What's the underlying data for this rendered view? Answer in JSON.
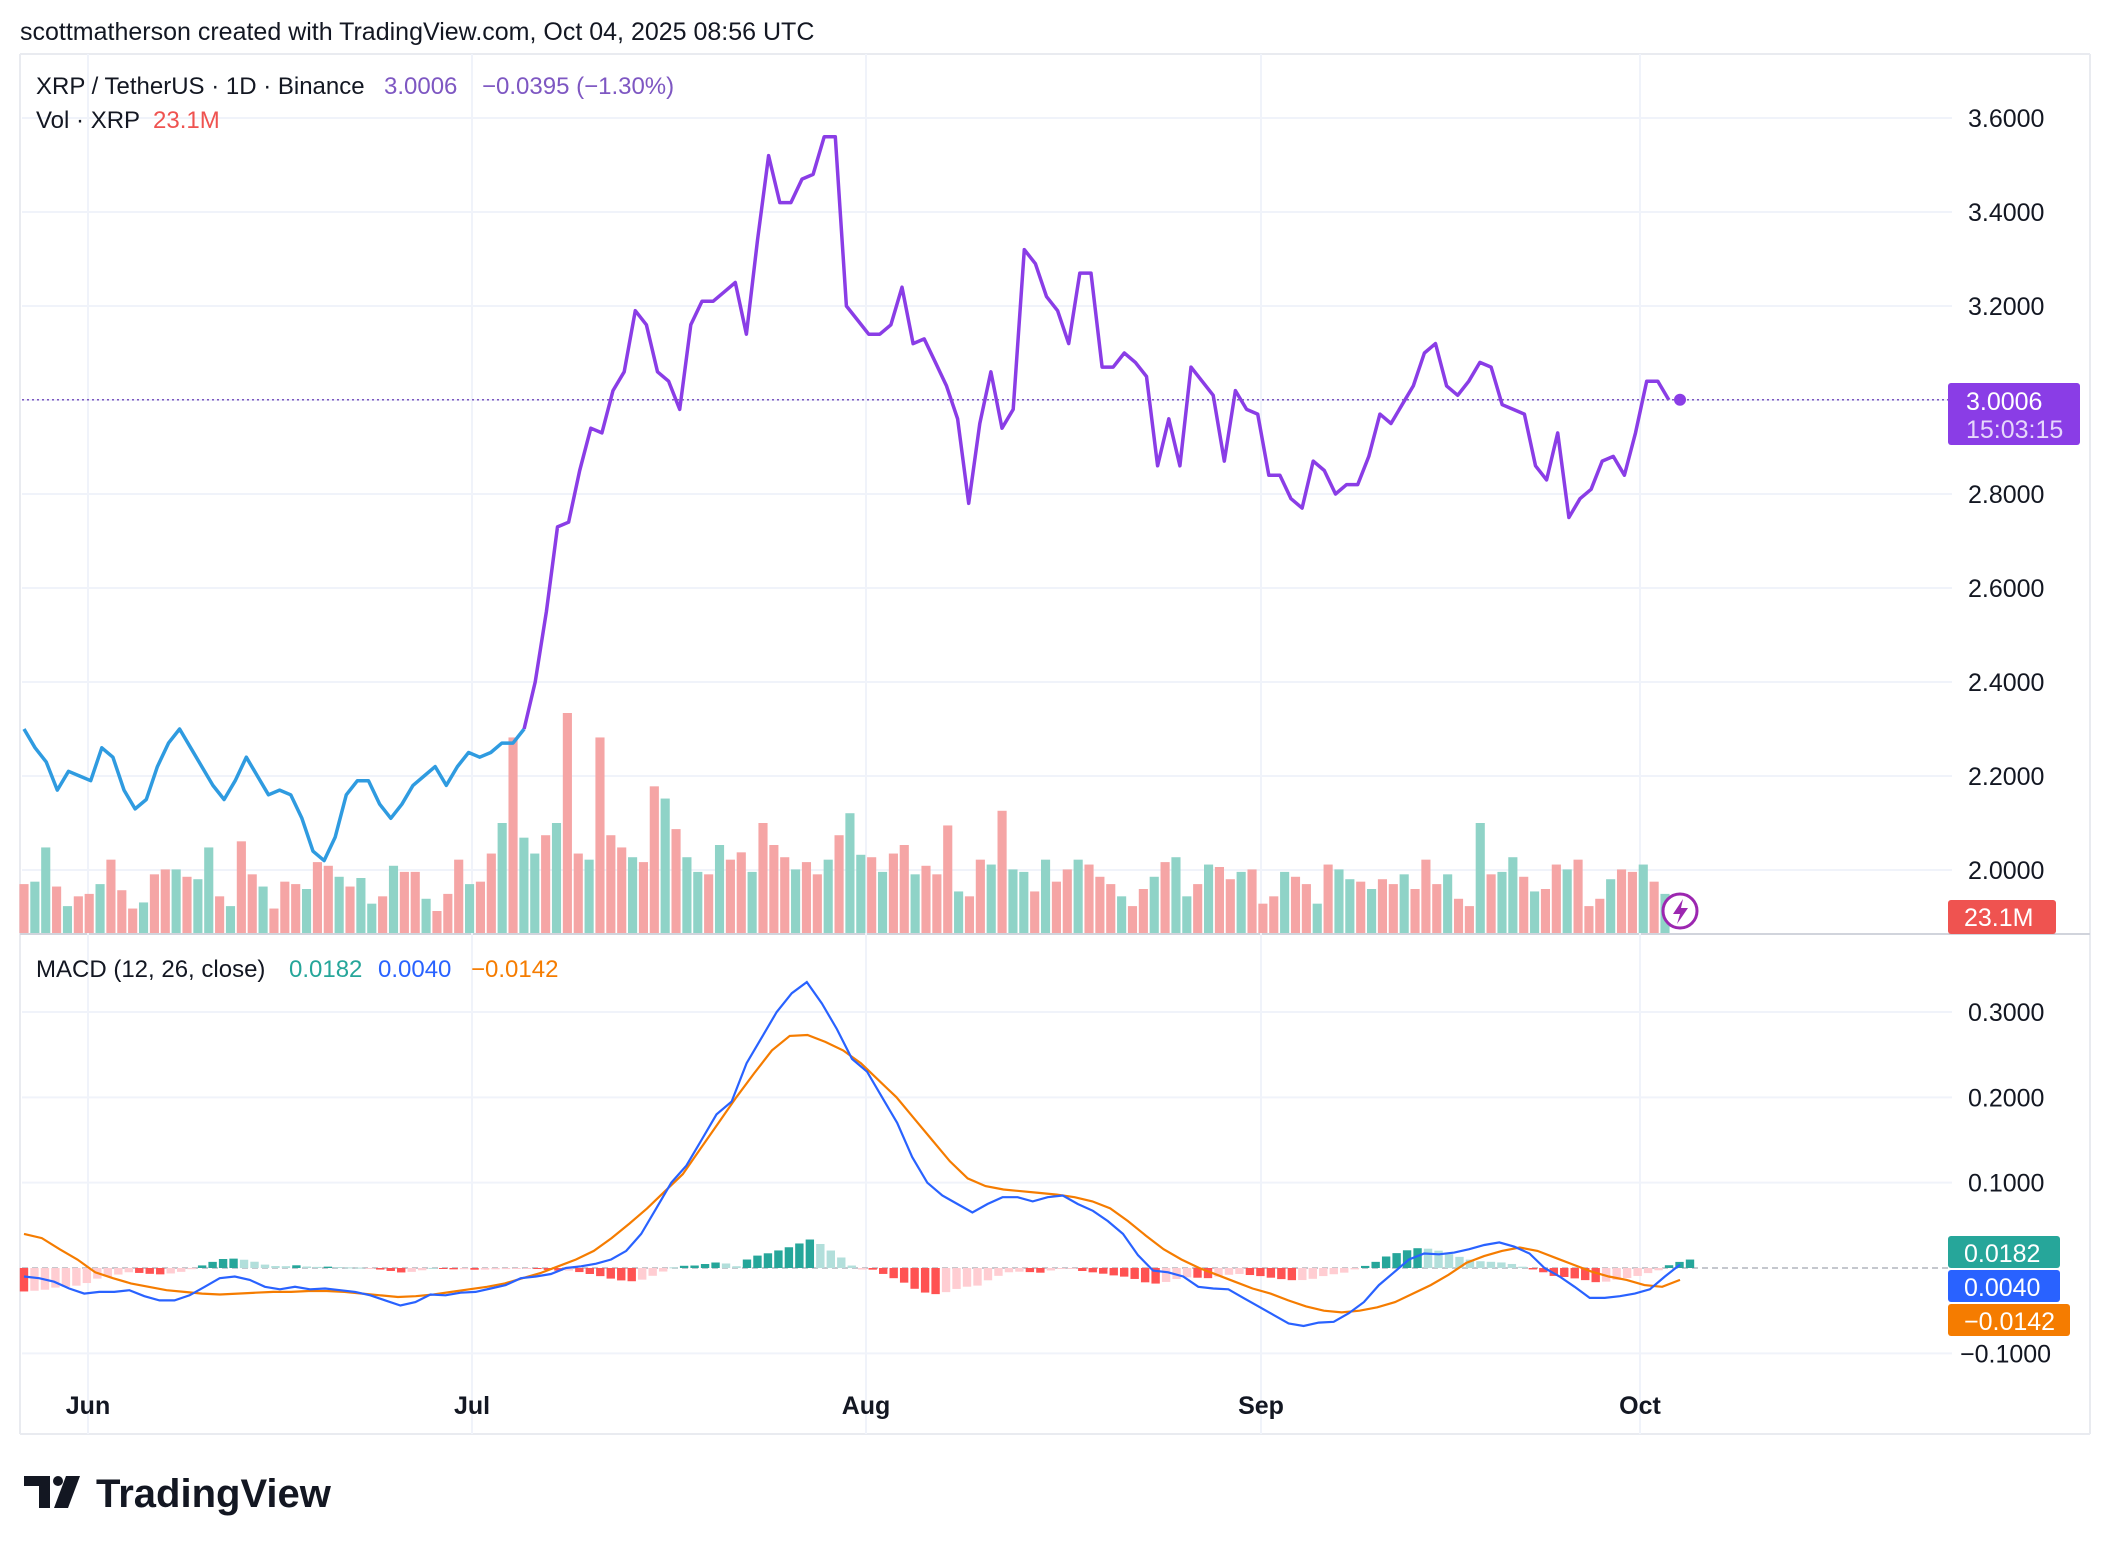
{
  "header": {
    "attribution": "scottmatherson created with TradingView.com, Oct 04, 2025 08:56 UTC"
  },
  "legend": {
    "symbol": "XRP / TetherUS · 1D · Binance",
    "last_price": "3.0006",
    "change": "−0.0395 (−1.30%)",
    "volume_label": "Vol · XRP",
    "volume_value": "23.1M",
    "macd_label": "MACD (12, 26, close)",
    "macd_hist": "0.0182",
    "macd_line": "0.0040",
    "macd_signal": "−0.0142"
  },
  "price_axis": {
    "ticks": [
      "3.6000",
      "3.4000",
      "3.2000",
      "3.0000",
      "2.8000",
      "2.6000",
      "2.4000",
      "2.2000",
      "2.0000"
    ],
    "last_price_badge": "3.0006",
    "countdown": "15:03:15",
    "volume_badge": "23.1M"
  },
  "macd_axis": {
    "ticks": [
      "0.3000",
      "0.2000",
      "0.1000",
      "−0.1000"
    ],
    "hist_badge": "0.0182",
    "macd_badge": "0.0040",
    "signal_badge": "−0.0142"
  },
  "time_axis": {
    "labels": [
      "Jun",
      "Jul",
      "Aug",
      "Sep",
      "Oct"
    ]
  },
  "branding": {
    "logo_text": "TradingView"
  },
  "colors": {
    "price_line_early": "#2f9be0",
    "price_line_late": "#8a3de6",
    "price_highlight": "#7e57c2",
    "down": "#ef5350",
    "up": "#26a69a",
    "macd_line": "#2962ff",
    "signal_line": "#f57c00",
    "hist_up_strong": "#26a69a",
    "hist_up_weak": "#b2dfdb",
    "hist_down_strong": "#ff5252",
    "hist_down_weak": "#ffcdd2",
    "vol_up": "#8fd3c7",
    "vol_down": "#f5a5a5"
  },
  "chart_data": {
    "type": "line",
    "symbol": "XRP / TetherUS",
    "interval": "1D",
    "exchange": "Binance",
    "price_ylim": [
      1.86,
      3.72
    ],
    "macd_ylim": [
      -0.12,
      0.36
    ],
    "grid": true,
    "price": [
      3.06,
      3.19,
      3.16,
      3.06,
      3.04,
      2.98,
      3.16,
      3.21,
      3.21,
      3.23,
      3.25,
      3.14,
      3.34,
      3.52,
      3.42,
      3.42,
      3.47,
      3.48,
      3.56,
      3.56,
      3.2,
      3.17,
      3.14,
      3.14,
      3.16,
      3.24,
      3.12,
      3.13,
      3.08,
      3.03,
      2.96,
      2.78,
      2.95,
      3.06,
      2.94,
      2.98,
      3.32,
      3.29,
      3.22,
      3.19,
      3.12,
      3.27,
      3.27,
      3.07,
      3.07,
      3.1,
      3.08,
      3.05,
      2.86,
      2.96,
      2.86,
      3.07,
      3.04,
      3.01,
      2.87,
      3.02,
      2.98,
      2.97,
      2.84,
      2.84,
      2.79,
      2.77,
      2.87,
      2.85,
      2.8,
      2.82,
      2.82,
      2.88,
      2.97,
      2.95,
      2.99,
      3.03,
      3.1,
      3.12,
      3.03,
      3.01,
      3.04,
      3.08,
      3.07,
      2.99,
      2.98,
      2.97,
      2.86,
      2.83,
      2.93,
      2.75,
      2.79,
      2.81,
      2.87,
      2.88,
      2.84,
      2.93,
      3.04,
      3.04,
      3.0
    ],
    "price_note": "Daily closes approx.; early segment (Jun–early Jul) drawn blue, later purple",
    "price_early": [
      2.3,
      2.26,
      2.23,
      2.17,
      2.21,
      2.2,
      2.19,
      2.26,
      2.24,
      2.17,
      2.13,
      2.15,
      2.22,
      2.27,
      2.3,
      2.26,
      2.22,
      2.18,
      2.15,
      2.19,
      2.24,
      2.2,
      2.16,
      2.17,
      2.16,
      2.11,
      2.04,
      2.02,
      2.07,
      2.16,
      2.19,
      2.19,
      2.14,
      2.11,
      2.14,
      2.18,
      2.2,
      2.22,
      2.18,
      2.22,
      2.25,
      2.24,
      2.25,
      2.27,
      2.27,
      2.3,
      2.4,
      2.55,
      2.73,
      2.74,
      2.85,
      2.94,
      2.93,
      3.02,
      3.06
    ],
    "volume_m": [
      40,
      42,
      70,
      38,
      22,
      30,
      32,
      40,
      60,
      35,
      20,
      25,
      48,
      52,
      52,
      46,
      44,
      70,
      30,
      22,
      75,
      48,
      38,
      20,
      42,
      40,
      36,
      58,
      55,
      46,
      38,
      45,
      24,
      30,
      55,
      50,
      50,
      28,
      18,
      32,
      60,
      40,
      42,
      65,
      90,
      160,
      78,
      65,
      80,
      90,
      180,
      65,
      60,
      160,
      80,
      70,
      62,
      58,
      120,
      110,
      85,
      62,
      50,
      48,
      72,
      60,
      66,
      50,
      90,
      72,
      62,
      52,
      58,
      48,
      60,
      80,
      98,
      64,
      62,
      50,
      65,
      72,
      48,
      55,
      48,
      88,
      34,
      30,
      60,
      56,
      100,
      52,
      50,
      34,
      60,
      42,
      52,
      60,
      56,
      46,
      40,
      30,
      22,
      36,
      46,
      58,
      62,
      30,
      40,
      56,
      54,
      44,
      50,
      52,
      24,
      30,
      50,
      46,
      40,
      24,
      56,
      52,
      44,
      42,
      36,
      44,
      40,
      48,
      36,
      60,
      40,
      48,
      28,
      22,
      90,
      48,
      50,
      62,
      46,
      34,
      36,
      56,
      52,
      60,
      22,
      28,
      44,
      52,
      50,
      56,
      42,
      32
    ],
    "macd": [
      -0.01,
      -0.012,
      -0.016,
      -0.024,
      -0.03,
      -0.028,
      -0.028,
      -0.026,
      -0.033,
      -0.038,
      -0.038,
      -0.032,
      -0.022,
      -0.012,
      -0.01,
      -0.014,
      -0.022,
      -0.025,
      -0.022,
      -0.025,
      -0.024,
      -0.026,
      -0.028,
      -0.032,
      -0.038,
      -0.044,
      -0.04,
      -0.031,
      -0.032,
      -0.029,
      -0.028,
      -0.024,
      -0.02,
      -0.012,
      -0.01,
      -0.007,
      0.0,
      0.002,
      0.005,
      0.01,
      0.02,
      0.04,
      0.07,
      0.1,
      0.12,
      0.15,
      0.18,
      0.195,
      0.24,
      0.27,
      0.3,
      0.322,
      0.335,
      0.31,
      0.28,
      0.245,
      0.23,
      0.2,
      0.17,
      0.13,
      0.1,
      0.085,
      0.075,
      0.065,
      0.075,
      0.083,
      0.083,
      0.078,
      0.083,
      0.085,
      0.075,
      0.067,
      0.055,
      0.04,
      0.015,
      -0.003,
      -0.005,
      -0.01,
      -0.022,
      -0.024,
      -0.025,
      -0.035,
      -0.045,
      -0.055,
      -0.065,
      -0.068,
      -0.064,
      -0.063,
      -0.053,
      -0.04,
      -0.02,
      -0.005,
      0.01,
      0.017,
      0.016,
      0.018,
      0.022,
      0.027,
      0.03,
      0.025,
      0.017,
      0.0,
      -0.01,
      -0.022,
      -0.035,
      -0.035,
      -0.033,
      -0.03,
      -0.025,
      -0.01,
      0.004
    ],
    "signal": [
      0.04,
      0.035,
      0.022,
      0.01,
      -0.005,
      -0.012,
      -0.018,
      -0.022,
      -0.026,
      -0.028,
      -0.03,
      -0.031,
      -0.03,
      -0.029,
      -0.028,
      -0.028,
      -0.027,
      -0.027,
      -0.028,
      -0.03,
      -0.032,
      -0.034,
      -0.033,
      -0.031,
      -0.028,
      -0.025,
      -0.022,
      -0.018,
      -0.012,
      -0.006,
      0.002,
      0.01,
      0.02,
      0.035,
      0.052,
      0.07,
      0.09,
      0.11,
      0.14,
      0.17,
      0.2,
      0.228,
      0.255,
      0.272,
      0.273,
      0.265,
      0.255,
      0.24,
      0.22,
      0.2,
      0.175,
      0.15,
      0.125,
      0.105,
      0.096,
      0.092,
      0.09,
      0.088,
      0.086,
      0.083,
      0.078,
      0.07,
      0.055,
      0.038,
      0.022,
      0.01,
      0.0,
      -0.008,
      -0.016,
      -0.024,
      -0.03,
      -0.038,
      -0.045,
      -0.05,
      -0.052,
      -0.05,
      -0.046,
      -0.04,
      -0.03,
      -0.02,
      -0.008,
      0.006,
      0.014,
      0.02,
      0.024,
      0.02,
      0.012,
      0.004,
      -0.004,
      -0.01,
      -0.014,
      -0.02,
      -0.022,
      -0.014
    ],
    "histogram_last": 0.0182,
    "last_price": 3.0006,
    "last_change": -0.0395,
    "last_change_pct": -1.3,
    "volume_last_m": 23.1
  }
}
